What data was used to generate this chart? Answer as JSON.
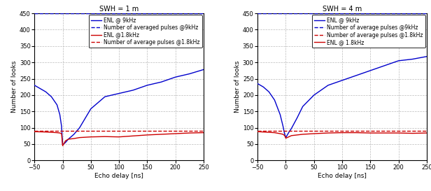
{
  "title1": "SWH = 1 m",
  "title2": "SWH = 4 m",
  "xlabel": "Echo delay [ns]",
  "ylabel": "Number of looks",
  "xlim": [
    -50,
    250
  ],
  "ylim": [
    0,
    450
  ],
  "yticks": [
    0,
    50,
    100,
    150,
    200,
    250,
    300,
    350,
    400,
    450
  ],
  "xticks": [
    -50,
    0,
    50,
    100,
    150,
    200,
    250
  ],
  "blue_dashed_level": 450,
  "red_dashed_level": 90,
  "legend1": [
    "ENL @ 9kHz",
    "Number of averaged pulses @9kHz",
    "ENL @1.8kHz",
    "Number of average pulses @1.8kHz"
  ],
  "legend2": [
    "ENL @ 9kHz",
    "Number of average pulses @9kHz",
    "Number of average pulses @1.8kHz",
    "ENL @ 1.8kHz"
  ],
  "plot1_blue_enl_x": [
    -50,
    -30,
    -20,
    -10,
    -5,
    -2,
    0,
    5,
    10,
    20,
    30,
    50,
    75,
    100,
    125,
    150,
    175,
    200,
    225,
    250
  ],
  "plot1_blue_enl_y": [
    230,
    210,
    195,
    170,
    140,
    105,
    48,
    55,
    65,
    80,
    100,
    158,
    195,
    205,
    215,
    230,
    240,
    255,
    265,
    278
  ],
  "plot1_red_enl_x": [
    -50,
    -30,
    -20,
    -10,
    -5,
    -2,
    0,
    5,
    10,
    20,
    30,
    50,
    75,
    100,
    125,
    150,
    175,
    200,
    225,
    250
  ],
  "plot1_red_enl_y": [
    88,
    87,
    86,
    85,
    84,
    82,
    45,
    60,
    65,
    67,
    70,
    72,
    73,
    72,
    75,
    78,
    80,
    82,
    84,
    85
  ],
  "plot2_blue_enl_x": [
    -50,
    -40,
    -30,
    -20,
    -10,
    -5,
    -2,
    0,
    5,
    10,
    20,
    30,
    50,
    75,
    100,
    125,
    150,
    175,
    200,
    225,
    250
  ],
  "plot2_blue_enl_y": [
    235,
    225,
    210,
    185,
    140,
    105,
    80,
    70,
    85,
    98,
    130,
    165,
    200,
    230,
    245,
    260,
    275,
    290,
    305,
    310,
    318
  ],
  "plot2_red_enl_x": [
    -50,
    -40,
    -30,
    -20,
    -10,
    -5,
    -2,
    0,
    5,
    10,
    20,
    30,
    50,
    75,
    100,
    125,
    150,
    175,
    200,
    225,
    250
  ],
  "plot2_red_enl_y": [
    88,
    87,
    86,
    85,
    82,
    80,
    76,
    68,
    72,
    76,
    78,
    80,
    82,
    84,
    85,
    85,
    84,
    84,
    84,
    83,
    84
  ],
  "blue_solid_color": "#0000cc",
  "blue_dashed_color": "#0000cc",
  "red_solid_color": "#cc0000",
  "red_dashed_color": "#cc0000",
  "bg_color": "#ffffff",
  "grid_color": "#bbbbbb",
  "title_fontsize": 7,
  "label_fontsize": 6.5,
  "tick_fontsize": 6,
  "legend_fontsize": 5.5
}
